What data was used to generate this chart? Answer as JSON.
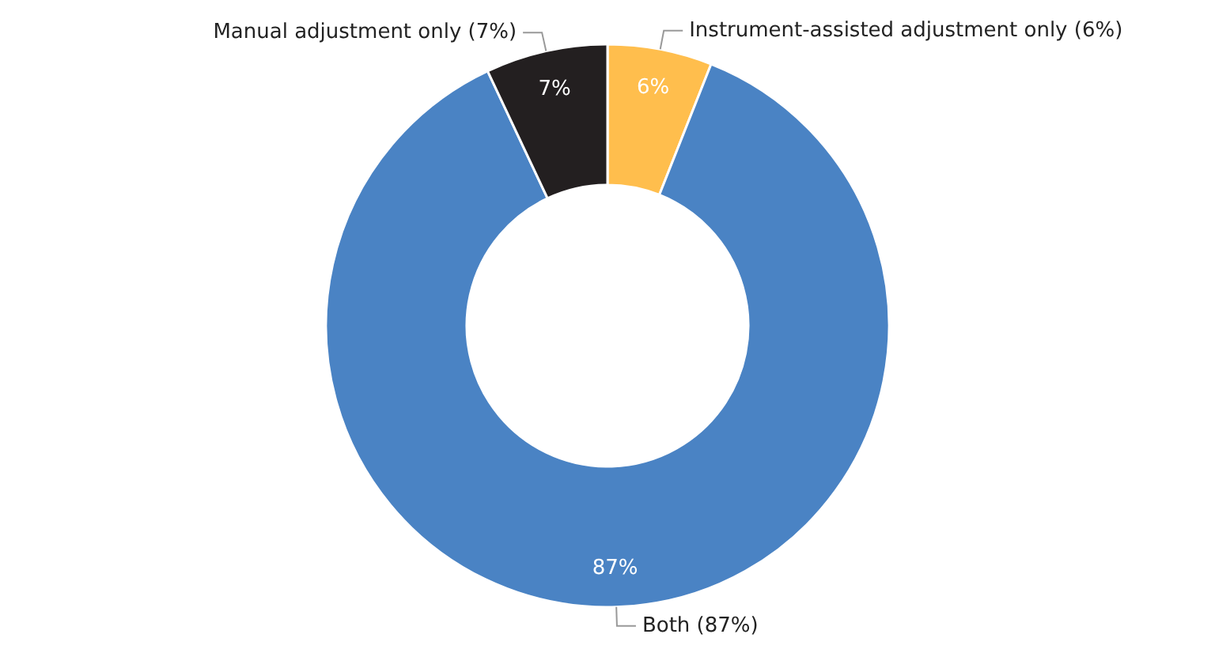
{
  "chart_data": {
    "type": "donut",
    "categories": [
      "Instrument-assisted adjustment only (6%)",
      "Both (87%)",
      "Manual adjustment only (7%)"
    ],
    "values": [
      6,
      87,
      7
    ],
    "colors": [
      "#ffbe4d",
      "#4a83c4",
      "#231f20"
    ],
    "value_labels": [
      "6%",
      "87%",
      "7%"
    ]
  }
}
